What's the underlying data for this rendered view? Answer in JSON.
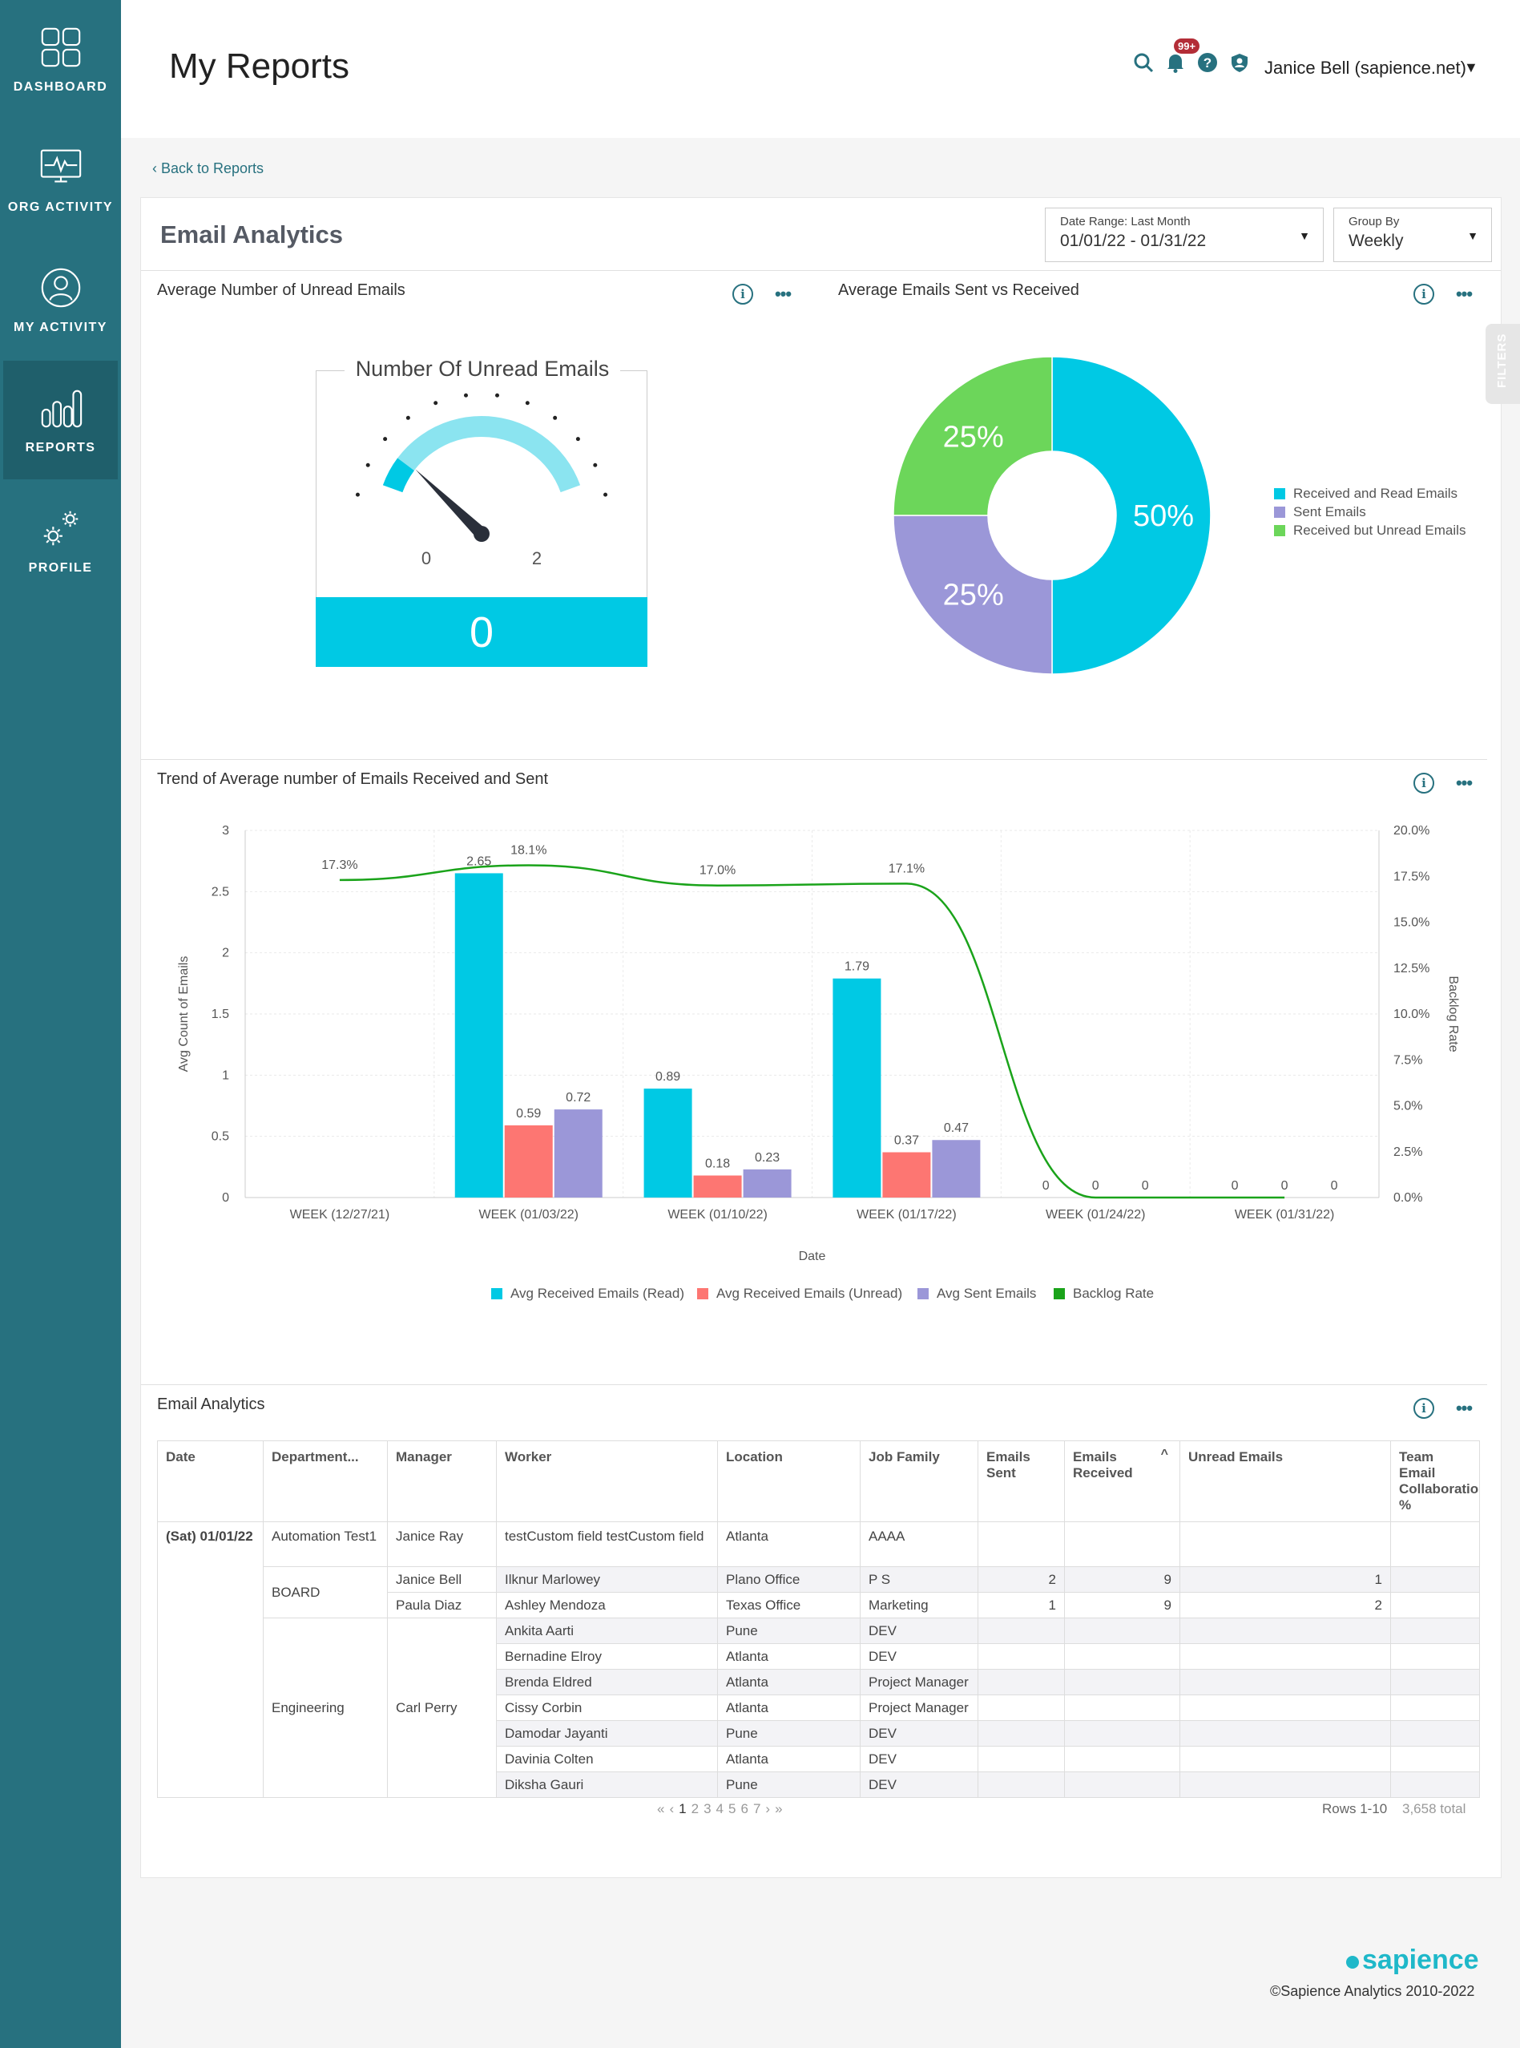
{
  "nav": [
    {
      "label": "DASHBOARD",
      "icon": "dashboard-icon"
    },
    {
      "label": "ORG ACTIVITY",
      "icon": "org-activity-icon"
    },
    {
      "label": "MY ACTIVITY",
      "icon": "user-icon"
    },
    {
      "label": "REPORTS",
      "icon": "reports-icon"
    },
    {
      "label": "PROFILE",
      "icon": "gear-icon"
    }
  ],
  "header": {
    "title": "My Reports",
    "notification_count": "99+",
    "user": "Janice Bell (sapience.net)"
  },
  "back_link": "Back to Reports",
  "card": {
    "title": "Email Analytics",
    "date_range": {
      "label": "Date Range: Last Month",
      "value": "01/01/22 - 01/31/22"
    },
    "group_by": {
      "label": "Group By",
      "value": "Weekly"
    }
  },
  "filters_label": "FILTERS",
  "panels": {
    "unread": "Average Number of Unread Emails",
    "sent_received": "Average Emails Sent vs Received",
    "trend": "Trend of Average number of Emails Received and Sent",
    "table": "Email Analytics"
  },
  "gauge": {
    "title": "Number Of Unread Emails",
    "min_label": "0",
    "max_label": "2",
    "value": 0,
    "value_label": "0",
    "colors": {
      "fill": "#00c9e4",
      "track": "#8be4f0"
    }
  },
  "chart_data": [
    {
      "type": "pie",
      "slices": [
        {
          "name": "Received and Read Emails",
          "value": 50,
          "label": "50%",
          "color": "#00c9e4"
        },
        {
          "name": "Sent Emails",
          "value": 25,
          "label": "25%",
          "color": "#9b97d8"
        },
        {
          "name": "Received but Unread Emails",
          "value": 25,
          "label": "25%",
          "color": "#6cd65a"
        }
      ]
    },
    {
      "type": "bar",
      "xlabel": "Date",
      "ylabel": "Avg Count of Emails",
      "y2label": "Backlog Rate",
      "ylim": [
        0,
        3
      ],
      "y2lim": [
        0,
        20
      ],
      "yticks": [
        "0",
        "0.5",
        "1",
        "1.5",
        "2",
        "2.5",
        "3"
      ],
      "y2ticks": [
        "0.0%",
        "2.5%",
        "5.0%",
        "7.5%",
        "10.0%",
        "12.5%",
        "15.0%",
        "17.5%",
        "20.0%"
      ],
      "categories": [
        "WEEK (12/27/21)",
        "WEEK (01/03/22)",
        "WEEK (01/10/22)",
        "WEEK (01/17/22)",
        "WEEK (01/24/22)",
        "WEEK (01/31/22)"
      ],
      "series": [
        {
          "name": "Avg Received Emails (Read)",
          "color": "#00c9e4",
          "values": [
            null,
            2.65,
            0.89,
            1.79,
            0,
            0
          ],
          "labels": [
            "",
            "2.65",
            "0.89",
            "1.79",
            "0",
            "0"
          ]
        },
        {
          "name": "Avg Received Emails (Unread)",
          "color": "#fd7672",
          "values": [
            null,
            0.59,
            0.18,
            0.37,
            0,
            0
          ],
          "labels": [
            "",
            "0.59",
            "0.18",
            "0.37",
            "0",
            "0"
          ]
        },
        {
          "name": "Avg Sent Emails",
          "color": "#9b97d8",
          "values": [
            null,
            0.72,
            0.23,
            0.47,
            0,
            0
          ],
          "labels": [
            "",
            "0.72",
            "0.23",
            "0.47",
            "0",
            "0"
          ]
        },
        {
          "name": "Backlog Rate",
          "color": "#1aa31a",
          "type": "line",
          "values": [
            17.3,
            18.1,
            17.0,
            17.1,
            0,
            0
          ],
          "labels": [
            "17.3%",
            "18.1%",
            "17.0%",
            "17.1%",
            "",
            ""
          ]
        }
      ],
      "legend_position": "bottom"
    }
  ],
  "table": {
    "columns": [
      "Date",
      "Department...",
      "Manager",
      "Worker",
      "Location",
      "Job Family",
      "Emails Sent",
      "Emails Received",
      "Unread Emails",
      "Team Email Collaboration %"
    ],
    "date": "(Sat) 01/01/22",
    "rows": [
      {
        "dept": "Automation Test1",
        "manager": "Janice Ray",
        "worker": "testCustom field testCustom field",
        "location": "Atlanta",
        "job": "AAAA",
        "sent": "",
        "received": "",
        "unread": ""
      },
      {
        "dept": "BOARD",
        "manager": "Janice Bell",
        "worker": "Ilknur Marlowey",
        "location": "Plano Office",
        "job": "P S",
        "sent": "2",
        "received": "9",
        "unread": "1"
      },
      {
        "dept": "",
        "manager": "Paula Diaz",
        "worker": "Ashley Mendoza",
        "location": "Texas Office",
        "job": "Marketing",
        "sent": "1",
        "received": "9",
        "unread": "2"
      },
      {
        "dept": "Engineering",
        "manager": "Carl Perry",
        "worker": "Ankita Aarti",
        "location": "Pune",
        "job": "DEV",
        "sent": "",
        "received": "",
        "unread": ""
      },
      {
        "dept": "",
        "manager": "",
        "worker": "Bernadine Elroy",
        "location": "Atlanta",
        "job": "DEV",
        "sent": "",
        "received": "",
        "unread": ""
      },
      {
        "dept": "",
        "manager": "",
        "worker": "Brenda Eldred",
        "location": "Atlanta",
        "job": "Project Manager",
        "sent": "",
        "received": "",
        "unread": ""
      },
      {
        "dept": "",
        "manager": "",
        "worker": "Cissy Corbin",
        "location": "Atlanta",
        "job": "Project Manager",
        "sent": "",
        "received": "",
        "unread": ""
      },
      {
        "dept": "",
        "manager": "",
        "worker": "Damodar Jayanti",
        "location": "Pune",
        "job": "DEV",
        "sent": "",
        "received": "",
        "unread": ""
      },
      {
        "dept": "",
        "manager": "",
        "worker": "Davinia Colten",
        "location": "Atlanta",
        "job": "DEV",
        "sent": "",
        "received": "",
        "unread": ""
      },
      {
        "dept": "",
        "manager": "",
        "worker": "Diksha Gauri",
        "location": "Pune",
        "job": "DEV",
        "sent": "",
        "received": "",
        "unread": ""
      }
    ]
  },
  "pagination": {
    "first": "«",
    "prev": "‹",
    "pages": [
      "1",
      "2",
      "3",
      "4",
      "5",
      "6",
      "7"
    ],
    "next": "›",
    "last": "»",
    "rows": "Rows 1-10",
    "total": "3,658 total"
  },
  "footer": {
    "logo": "sapience",
    "copyright": "©Sapience Analytics 2010-2022"
  }
}
